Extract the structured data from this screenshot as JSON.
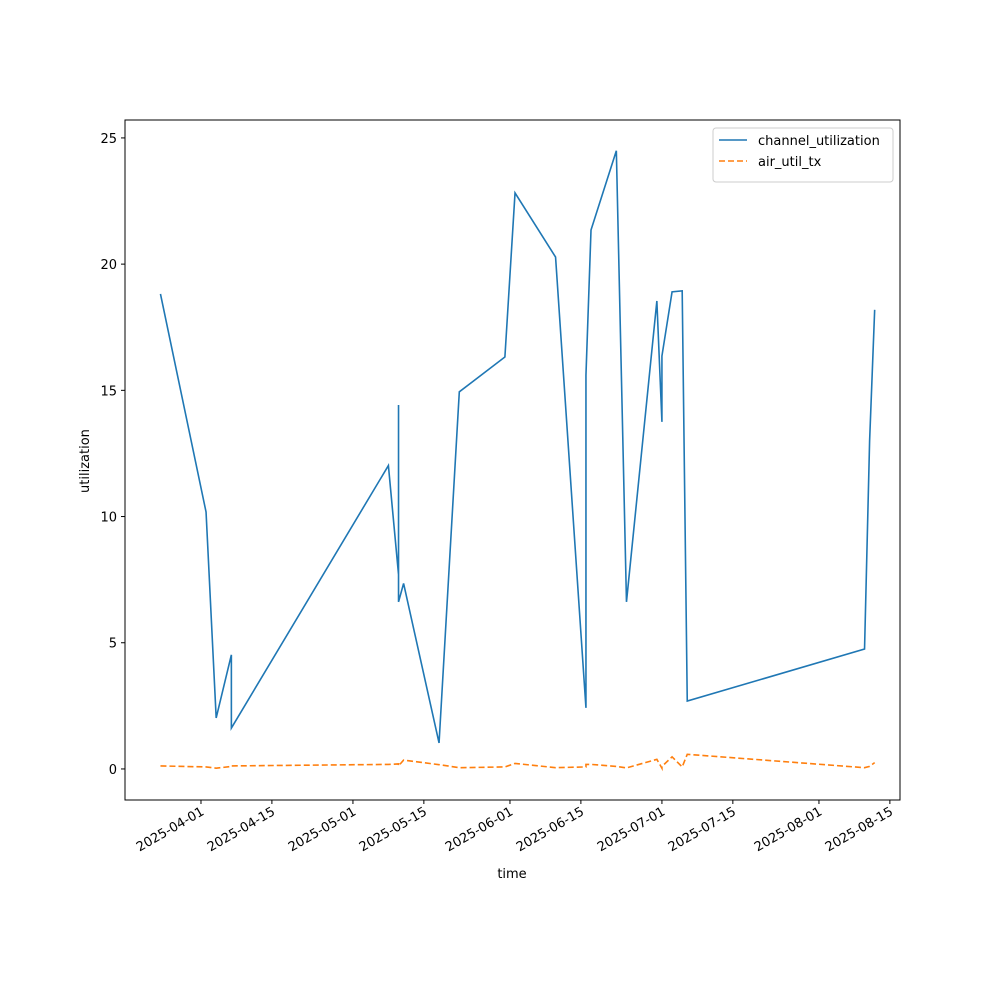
{
  "chart_data": {
    "type": "line",
    "x_label": "time",
    "y_label": "utilization",
    "x": [
      "2025-03-24",
      "2025-04-02",
      "2025-04-04",
      "2025-04-07",
      "2025-04-07",
      "2025-05-08",
      "2025-05-10",
      "2025-05-10",
      "2025-05-10",
      "2025-05-10",
      "2025-05-11",
      "2025-05-18",
      "2025-05-22",
      "2025-05-31",
      "2025-06-02",
      "2025-06-10",
      "2025-06-16",
      "2025-06-16",
      "2025-06-17",
      "2025-06-22",
      "2025-06-24",
      "2025-06-30",
      "2025-07-01",
      "2025-07-01",
      "2025-07-03",
      "2025-07-05",
      "2025-07-06",
      "2025-08-10",
      "2025-08-11",
      "2025-08-12"
    ],
    "series": [
      {
        "name": "channel_utilization",
        "color": "#1f77b4",
        "linestyle": "solid",
        "values": [
          18.82,
          10.18,
          2.02,
          4.52,
          1.62,
          12.02,
          7.7,
          14.42,
          7.6,
          6.62,
          7.35,
          1.03,
          14.94,
          16.32,
          22.82,
          20.28,
          2.42,
          15.6,
          21.35,
          24.49,
          6.62,
          18.54,
          13.75,
          16.36,
          18.9,
          18.94,
          2.69,
          4.75,
          13.0,
          18.19
        ]
      },
      {
        "name": "air_util_tx",
        "color": "#ff7f0e",
        "linestyle": "dashed",
        "values": [
          0.12,
          0.08,
          0.03,
          0.1,
          0.12,
          0.18,
          0.2,
          0.2,
          0.15,
          0.12,
          0.35,
          0.17,
          0.05,
          0.08,
          0.22,
          0.05,
          0.08,
          0.18,
          0.18,
          0.1,
          0.04,
          0.38,
          0.03,
          0.1,
          0.48,
          0.08,
          0.58,
          0.05,
          0.1,
          0.25
        ]
      }
    ],
    "xlim": [
      "2025-03-17",
      "2025-08-17"
    ],
    "xticks": [
      "2025-04-01",
      "2025-04-15",
      "2025-05-01",
      "2025-05-15",
      "2025-06-01",
      "2025-06-15",
      "2025-07-01",
      "2025-07-15",
      "2025-08-01",
      "2025-08-15"
    ],
    "ylim": [
      -1.23,
      25.71
    ],
    "yticks": [
      0,
      5,
      10,
      15,
      20,
      25
    ],
    "legend": "upper right"
  }
}
